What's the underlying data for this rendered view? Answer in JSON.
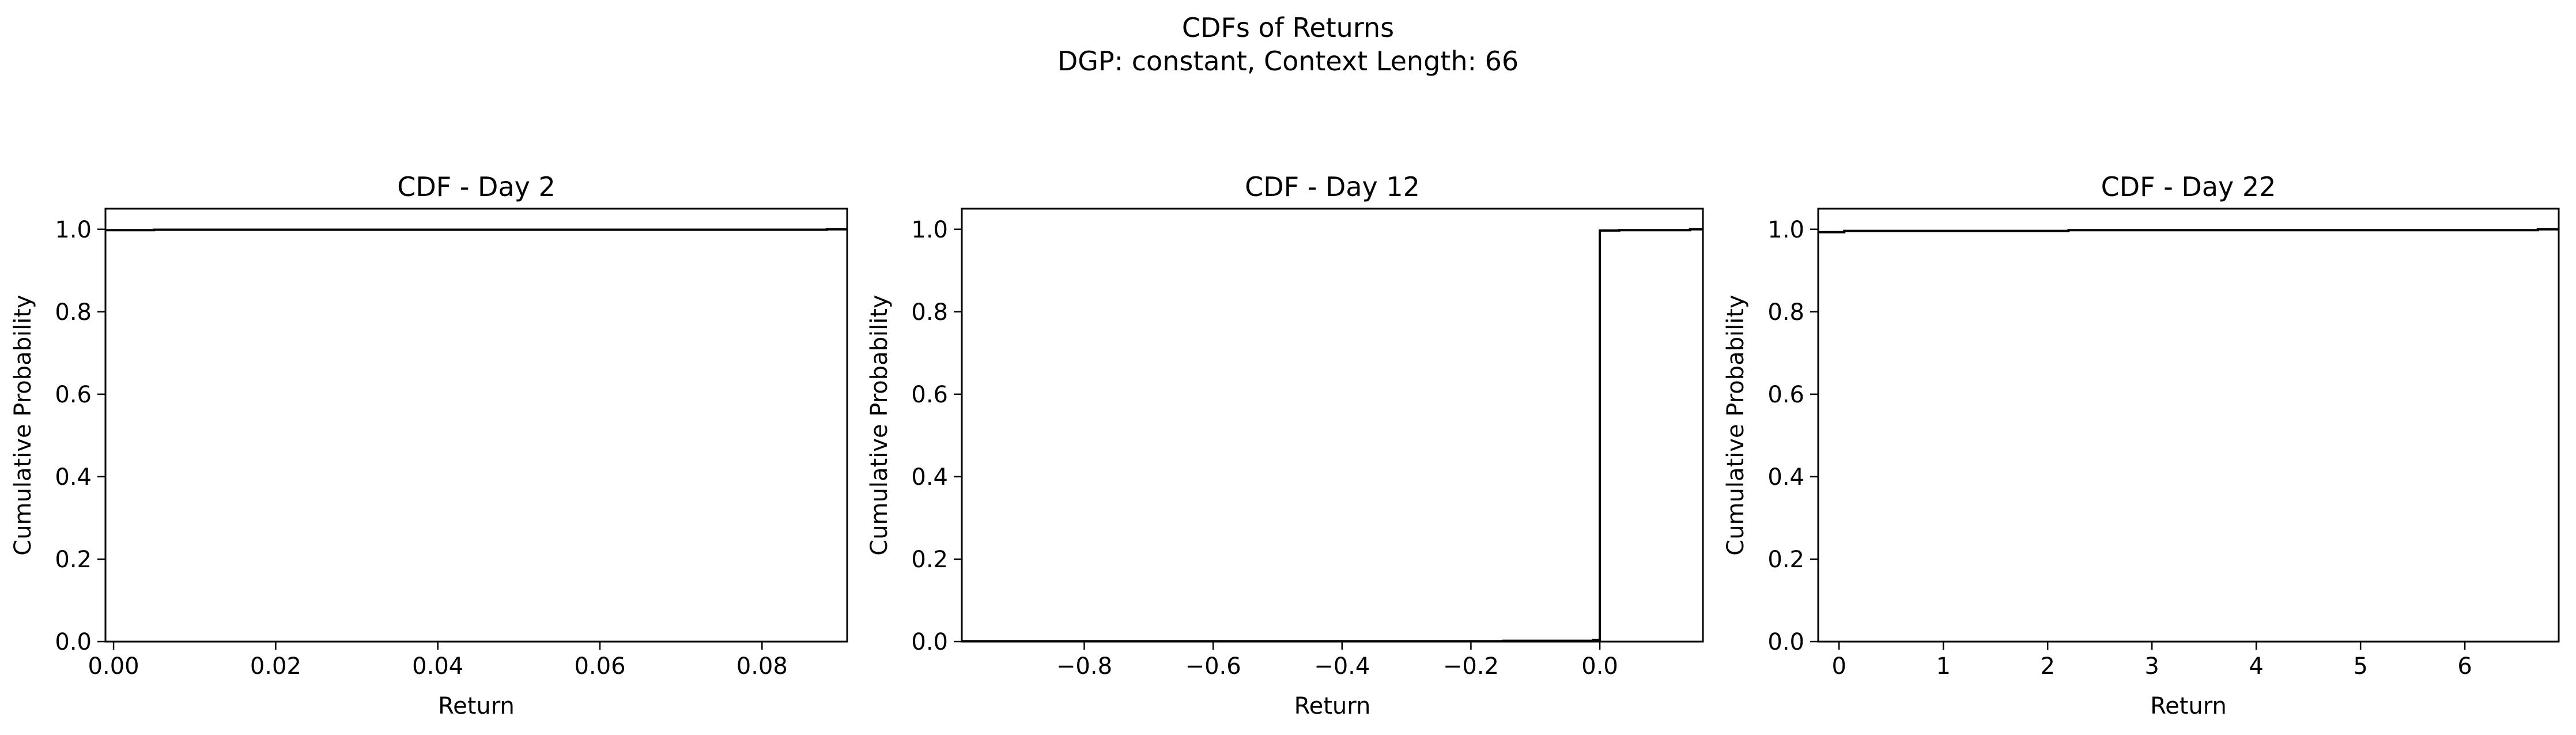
{
  "figure": {
    "suptitle_line1": "CDFs of Returns",
    "suptitle_line2": "DGP: constant, Context Length: 66"
  },
  "chart_data": [
    {
      "type": "line",
      "title": "CDF - Day 2",
      "xlabel": "Return",
      "ylabel": "Cumulative Probability",
      "xlim": [
        -0.001,
        0.0905
      ],
      "ylim": [
        0.0,
        1.05
      ],
      "xticks": [
        0.0,
        0.02,
        0.04,
        0.06,
        0.08
      ],
      "xtick_labels": [
        "0.00",
        "0.02",
        "0.04",
        "0.06",
        "0.08"
      ],
      "yticks": [
        0.0,
        0.2,
        0.4,
        0.6,
        0.8,
        1.0
      ],
      "ytick_labels": [
        "0.0",
        "0.2",
        "0.4",
        "0.6",
        "0.8",
        "1.0"
      ],
      "grid": false,
      "color": "#000000",
      "series": [
        {
          "x": [
            -0.001,
            0.0,
            0.005,
            0.088,
            0.0905
          ],
          "y": [
            0.998,
            0.998,
            0.999,
            1.0,
            1.0
          ]
        }
      ]
    },
    {
      "type": "line",
      "title": "CDF - Day 12",
      "xlabel": "Return",
      "ylabel": "Cumulative Probability",
      "xlim": [
        -0.99,
        0.16
      ],
      "ylim": [
        0.0,
        1.05
      ],
      "xticks": [
        -0.8,
        -0.6,
        -0.4,
        -0.2,
        0.0
      ],
      "xtick_labels": [
        "−0.8",
        "−0.6",
        "−0.4",
        "−0.2",
        "0.0"
      ],
      "yticks": [
        0.0,
        0.2,
        0.4,
        0.6,
        0.8,
        1.0
      ],
      "ytick_labels": [
        "0.0",
        "0.2",
        "0.4",
        "0.6",
        "0.8",
        "1.0"
      ],
      "grid": false,
      "color": "#000000",
      "series": [
        {
          "x": [
            -0.99,
            -0.15,
            -0.01,
            0.0,
            0.03,
            0.14,
            0.16
          ],
          "y": [
            0.001,
            0.002,
            0.004,
            0.997,
            0.998,
            1.0,
            1.0
          ]
        }
      ]
    },
    {
      "type": "line",
      "title": "CDF - Day 22",
      "xlabel": "Return",
      "ylabel": "Cumulative Probability",
      "xlim": [
        -0.2,
        6.9
      ],
      "ylim": [
        0.0,
        1.05
      ],
      "xticks": [
        0,
        1,
        2,
        3,
        4,
        5,
        6
      ],
      "xtick_labels": [
        "0",
        "1",
        "2",
        "3",
        "4",
        "5",
        "6"
      ],
      "yticks": [
        0.0,
        0.2,
        0.4,
        0.6,
        0.8,
        1.0
      ],
      "ytick_labels": [
        "0.0",
        "0.2",
        "0.4",
        "0.6",
        "0.8",
        "1.0"
      ],
      "grid": false,
      "color": "#000000",
      "series": [
        {
          "x": [
            -0.2,
            0.05,
            2.2,
            6.7,
            6.9
          ],
          "y": [
            0.993,
            0.996,
            0.998,
            1.0,
            1.0
          ]
        }
      ]
    }
  ]
}
